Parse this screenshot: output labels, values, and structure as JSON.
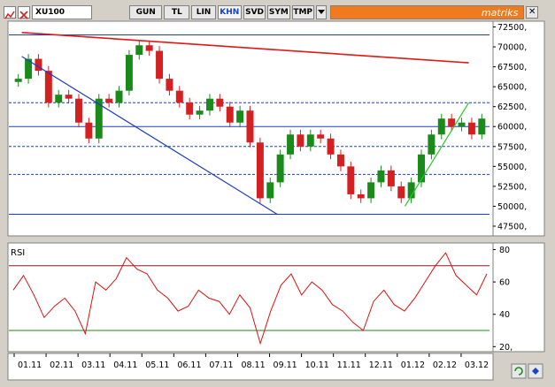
{
  "toolbar": {
    "symbol": "XU100",
    "buttons": [
      "GUN",
      "TL",
      "LIN",
      "KHN",
      "SVD",
      "SYM",
      "TMP"
    ],
    "active": "KHN",
    "brand": "matriks"
  },
  "colors": {
    "up": "#1a8a1a",
    "down": "#d42020",
    "hline": "#1a3cc8",
    "rsi": "#e01010",
    "green_trend": "#22cc22",
    "red_trend": "#e01818"
  },
  "chart_data": [
    {
      "type": "candlestick",
      "title": "",
      "x_ticks": [
        "01.11",
        "02.11",
        "03.11",
        "04.11",
        "05.11",
        "06.11",
        "07.11",
        "08.11",
        "09.11",
        "10.11",
        "11.11",
        "12.11",
        "01.12",
        "02.12",
        "03.12"
      ],
      "y_ticks": [
        "72500,",
        "70000,",
        "67500,",
        "65000,",
        "62500,",
        "60000,",
        "57500,",
        "55000,",
        "52500,",
        "50000,",
        "47500,"
      ],
      "ylim": [
        46500,
        73000
      ],
      "horizontal_lines": [
        {
          "value": 71500,
          "style": "solid"
        },
        {
          "value": 63000,
          "style": "dashed"
        },
        {
          "value": 60000,
          "style": "solid"
        },
        {
          "value": 57500,
          "style": "dashed"
        },
        {
          "value": 54000,
          "style": "dashed"
        },
        {
          "value": 49000,
          "style": "solid"
        }
      ],
      "trendlines": [
        {
          "color": "red",
          "from": [
            "01.11",
            71800
          ],
          "to": [
            "03.12",
            68000
          ]
        },
        {
          "color": "blue",
          "from": [
            "01.11",
            68800
          ],
          "to": [
            "09.11",
            49000
          ]
        },
        {
          "color": "green",
          "from": [
            "01.12",
            50000
          ],
          "to": [
            "03.12",
            63000
          ]
        }
      ],
      "close_series": [
        66000,
        68500,
        67000,
        63000,
        64000,
        63500,
        60500,
        58500,
        63500,
        63000,
        64500,
        69000,
        70200,
        69500,
        66000,
        64500,
        63000,
        61500,
        62000,
        63500,
        62500,
        60500,
        62000,
        58000,
        51000,
        53000,
        56500,
        59000,
        57500,
        59000,
        58500,
        56500,
        55000,
        51500,
        51000,
        53000,
        54500,
        52500,
        51000,
        53000,
        56500,
        59000,
        61000,
        60000,
        60500,
        59000,
        61000
      ]
    },
    {
      "type": "line",
      "title": "RSI",
      "x_ticks": [
        "01.11",
        "02.11",
        "03.11",
        "04.11",
        "05.11",
        "06.11",
        "07.11",
        "08.11",
        "09.11",
        "10.11",
        "11.11",
        "12.11",
        "01.12",
        "02.12",
        "03.12"
      ],
      "y_ticks": [
        "80",
        "60",
        "40",
        "20,"
      ],
      "ylim": [
        18,
        83
      ],
      "levels": [
        70,
        30
      ],
      "values": [
        55,
        64,
        52,
        38,
        45,
        50,
        42,
        28,
        60,
        55,
        62,
        75,
        68,
        65,
        55,
        50,
        42,
        45,
        55,
        50,
        48,
        40,
        52,
        44,
        22,
        42,
        58,
        65,
        52,
        60,
        55,
        46,
        42,
        35,
        30,
        48,
        55,
        46,
        42,
        50,
        60,
        70,
        78,
        64,
        58,
        52,
        65
      ]
    }
  ]
}
